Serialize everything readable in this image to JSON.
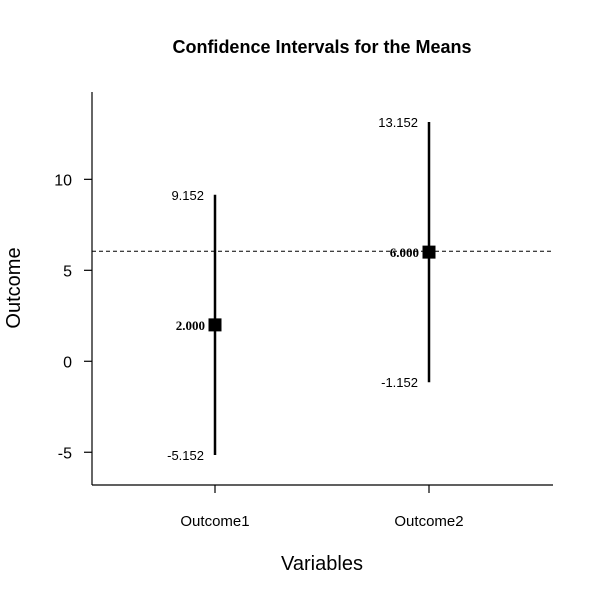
{
  "chart_data": {
    "type": "errorbar",
    "title": "Confidence Intervals for the Means",
    "xlabel": "Variables",
    "ylabel": "Outcome",
    "categories": [
      "Outcome1",
      "Outcome2"
    ],
    "means": [
      2.0,
      6.0
    ],
    "lower": [
      -5.152,
      -1.152
    ],
    "upper": [
      9.152,
      13.152
    ],
    "mean_labels": [
      "2.000",
      "6.000"
    ],
    "lower_labels": [
      "-5.152",
      "-1.152"
    ],
    "upper_labels": [
      "9.152",
      "13.152"
    ],
    "reference_line": 6.05,
    "yticks": [
      -5,
      0,
      5,
      10
    ],
    "ytick_labels": [
      "-5",
      "0",
      "5",
      "10"
    ],
    "ylim": [
      -6.8,
      14.8
    ],
    "grid": false
  }
}
